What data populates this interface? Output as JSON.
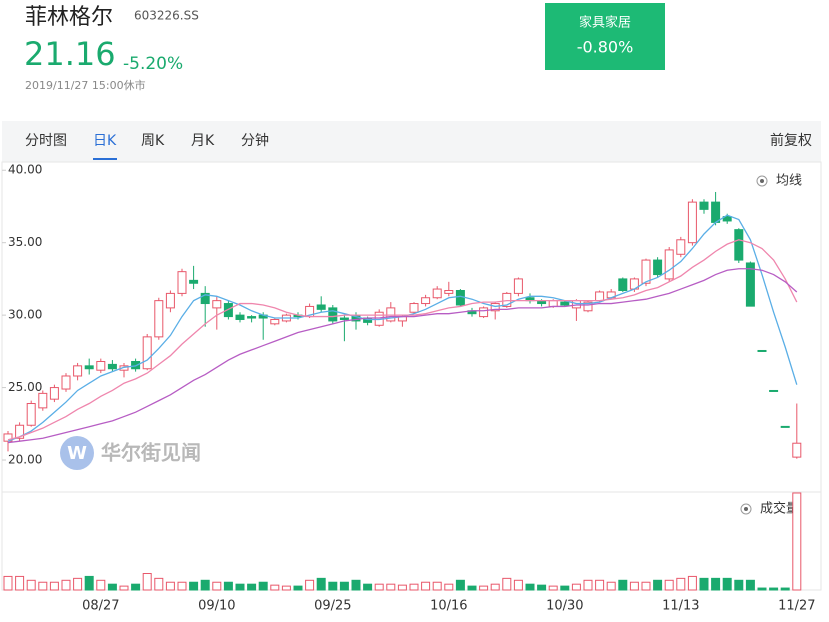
{
  "header": {
    "name": "菲林格尔",
    "code": "603226.SS",
    "price": "21.16",
    "change": "-5.20%",
    "time": "2019/11/27 15:00休市",
    "sector": {
      "name": "家具家居",
      "change": "-0.80%"
    }
  },
  "tabs": [
    "分时图",
    "日K",
    "周K",
    "月K",
    "分钟"
  ],
  "active_tab": 1,
  "adjust": "前复权",
  "watermark": "华尔街见闻",
  "chart_data": {
    "type": "candlestick",
    "categories": [
      null,
      null,
      null,
      null,
      null,
      null,
      null,
      null,
      "08/27",
      null,
      null,
      null,
      null,
      null,
      null,
      null,
      null,
      null,
      "09/10",
      null,
      null,
      null,
      null,
      null,
      null,
      null,
      null,
      null,
      "09/25",
      null,
      null,
      null,
      null,
      null,
      null,
      null,
      null,
      null,
      "10/16",
      null,
      null,
      null,
      null,
      null,
      null,
      null,
      null,
      null,
      "10/30",
      null,
      null,
      null,
      null,
      null,
      null,
      null,
      null,
      null,
      "11/13",
      null,
      null,
      null,
      null,
      null,
      null,
      null,
      null,
      null,
      "11/27"
    ],
    "open": [
      21.3,
      21.5,
      22.4,
      23.6,
      24.2,
      24.9,
      25.8,
      26.5,
      26.2,
      26.6,
      26.2,
      26.8,
      26.3,
      28.5,
      30.5,
      31.5,
      32.4,
      31.5,
      30.5,
      30.8,
      30.0,
      29.9,
      30.0,
      29.4,
      29.6,
      30.0,
      29.9,
      30.7,
      30.5,
      29.8,
      30.0,
      29.8,
      29.3,
      29.6,
      29.6,
      30.2,
      30.8,
      31.2,
      31.5,
      31.7,
      30.3,
      29.9,
      30.3,
      30.6,
      31.5,
      31.2,
      31.0,
      30.6,
      30.9,
      30.5,
      30.3,
      31.0,
      31.2,
      32.5,
      31.8,
      32.2,
      33.8,
      32.5,
      34.2,
      35.0,
      37.8,
      37.8,
      36.8,
      35.9,
      33.6,
      27.56,
      24.8,
      22.32,
      20.2
    ],
    "high": [
      22.0,
      22.6,
      24.1,
      24.8,
      25.2,
      26.0,
      26.7,
      27.0,
      27.0,
      26.9,
      26.7,
      27.0,
      28.7,
      31.2,
      31.7,
      33.2,
      33.4,
      32.0,
      31.3,
      31.0,
      30.2,
      30.0,
      30.2,
      29.8,
      30.1,
      30.2,
      30.8,
      31.3,
      30.7,
      30.0,
      30.2,
      29.9,
      30.4,
      30.9,
      30.0,
      30.9,
      31.4,
      32.0,
      32.3,
      31.8,
      30.5,
      30.6,
      30.9,
      31.6,
      32.6,
      31.5,
      31.1,
      31.1,
      31.0,
      31.1,
      31.0,
      31.7,
      31.8,
      32.6,
      32.6,
      33.9,
      34.0,
      34.7,
      35.4,
      38.0,
      38.0,
      38.5,
      37.0,
      36.0,
      33.7,
      27.56,
      24.8,
      22.32,
      23.9
    ],
    "low": [
      20.6,
      21.3,
      22.3,
      23.4,
      24.0,
      24.7,
      25.5,
      25.9,
      26.0,
      26.1,
      25.7,
      26.1,
      26.2,
      28.3,
      30.2,
      31.3,
      31.8,
      29.2,
      29.0,
      29.7,
      29.5,
      29.5,
      28.3,
      29.3,
      29.5,
      29.7,
      29.8,
      30.2,
      29.4,
      28.2,
      29.0,
      29.3,
      29.2,
      29.5,
      29.2,
      30.1,
      30.6,
      31.1,
      31.3,
      30.6,
      29.9,
      29.8,
      29.7,
      30.5,
      31.3,
      30.8,
      30.6,
      30.5,
      30.6,
      29.6,
      30.2,
      30.9,
      31.1,
      31.6,
      31.6,
      32.0,
      32.6,
      32.3,
      34.0,
      34.8,
      37.0,
      36.2,
      36.3,
      33.6,
      30.62,
      27.56,
      24.8,
      22.32,
      20.09
    ],
    "close": [
      21.8,
      22.4,
      23.9,
      24.6,
      25.0,
      25.8,
      26.5,
      26.3,
      26.8,
      26.3,
      26.5,
      26.3,
      28.5,
      31.0,
      31.5,
      33.0,
      32.2,
      30.8,
      31.0,
      29.9,
      29.7,
      29.8,
      29.8,
      29.7,
      30.0,
      29.9,
      30.6,
      30.4,
      29.6,
      29.7,
      29.6,
      29.5,
      30.2,
      30.5,
      29.9,
      30.8,
      31.2,
      31.8,
      31.7,
      30.7,
      30.1,
      30.5,
      30.8,
      31.5,
      32.5,
      31.0,
      30.8,
      31.0,
      30.7,
      31.0,
      30.9,
      31.6,
      31.6,
      31.7,
      32.5,
      33.8,
      32.8,
      34.5,
      35.2,
      37.8,
      37.3,
      36.4,
      36.5,
      33.8,
      30.62,
      27.56,
      24.8,
      22.32,
      21.16
    ],
    "up_color": "#e8576a",
    "down_color": "#1aaa6e",
    "ma_label": "均线",
    "ma_series": [
      {
        "color": "#5aaee6",
        "values": [
          21.3,
          21.6,
          22.0,
          22.6,
          23.3,
          24.0,
          24.8,
          25.3,
          25.8,
          26.1,
          26.4,
          26.5,
          26.9,
          27.7,
          28.6,
          29.9,
          31.0,
          31.4,
          31.3,
          31.0,
          30.7,
          30.3,
          30.0,
          29.8,
          29.8,
          29.8,
          30.0,
          30.2,
          30.3,
          30.1,
          29.9,
          29.7,
          29.7,
          29.8,
          29.9,
          30.1,
          30.4,
          30.8,
          31.2,
          31.3,
          31.1,
          30.8,
          30.6,
          30.7,
          31.1,
          31.3,
          31.3,
          31.2,
          31.0,
          30.8,
          30.8,
          30.9,
          31.2,
          31.5,
          31.8,
          32.3,
          32.6,
          33.1,
          33.7,
          34.6,
          35.6,
          36.4,
          36.9,
          36.6,
          35.2,
          32.8,
          30.2,
          27.8,
          25.2
        ]
      },
      {
        "color": "#ef86ad",
        "values": [
          21.4,
          21.6,
          21.9,
          22.2,
          22.6,
          23.0,
          23.5,
          23.9,
          24.4,
          24.8,
          25.3,
          25.6,
          26.0,
          26.6,
          27.2,
          28.0,
          28.7,
          29.4,
          30.0,
          30.4,
          30.8,
          30.8,
          30.7,
          30.5,
          30.2,
          30.0,
          29.9,
          29.9,
          29.9,
          30.0,
          30.0,
          30.0,
          30.0,
          30.0,
          30.0,
          30.0,
          30.1,
          30.3,
          30.5,
          30.6,
          30.8,
          30.9,
          30.9,
          31.0,
          31.0,
          31.0,
          31.0,
          31.0,
          31.0,
          31.0,
          31.0,
          31.0,
          31.1,
          31.2,
          31.4,
          31.7,
          31.9,
          32.3,
          32.7,
          33.3,
          33.8,
          34.4,
          34.9,
          35.2,
          35.0,
          34.6,
          33.8,
          32.5,
          30.9
        ]
      },
      {
        "color": "#b75dc4",
        "values": [
          21.2,
          21.3,
          21.4,
          21.5,
          21.7,
          21.9,
          22.1,
          22.3,
          22.5,
          22.7,
          23.0,
          23.3,
          23.7,
          24.1,
          24.5,
          25.0,
          25.5,
          25.9,
          26.4,
          26.9,
          27.3,
          27.6,
          27.9,
          28.2,
          28.5,
          28.8,
          29.0,
          29.2,
          29.4,
          29.6,
          29.7,
          29.8,
          29.8,
          29.9,
          29.9,
          29.9,
          30.0,
          30.1,
          30.1,
          30.2,
          30.3,
          30.3,
          30.4,
          30.4,
          30.5,
          30.5,
          30.5,
          30.6,
          30.6,
          30.7,
          30.7,
          30.8,
          30.8,
          30.9,
          31.0,
          31.1,
          31.3,
          31.5,
          31.8,
          32.1,
          32.4,
          32.8,
          33.1,
          33.2,
          33.2,
          33.1,
          32.8,
          32.3,
          31.6
        ]
      }
    ],
    "ylim": [
      18,
      40.5
    ],
    "yticks": [
      {
        "value": 40,
        "label": "40.00"
      },
      {
        "value": 35,
        "label": "35.00"
      },
      {
        "value": 30,
        "label": "30.00"
      },
      {
        "value": 25,
        "label": "25.00"
      },
      {
        "value": 20,
        "label": "20.00"
      }
    ],
    "volume": {
      "label": "成交量",
      "ylim": [
        0,
        100
      ],
      "values": [
        14,
        14,
        10,
        8,
        8,
        10,
        12,
        14,
        10,
        6,
        4,
        6,
        17,
        12,
        8,
        8,
        8,
        10,
        8,
        8,
        6,
        6,
        8,
        5,
        4,
        4,
        10,
        12,
        8,
        8,
        10,
        6,
        6,
        6,
        5,
        6,
        8,
        8,
        6,
        10,
        4,
        4,
        6,
        12,
        10,
        6,
        5,
        4,
        4,
        6,
        10,
        10,
        8,
        10,
        8,
        8,
        10,
        10,
        12,
        14,
        12,
        12,
        12,
        10,
        10,
        2,
        2,
        2,
        100
      ]
    }
  }
}
